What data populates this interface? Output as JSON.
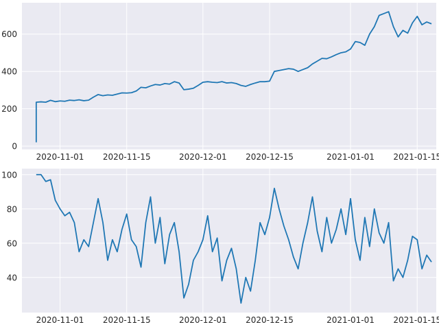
{
  "chart_data": [
    {
      "type": "line",
      "title": "",
      "xlabel": "",
      "ylabel": "",
      "x_tick_labels": [
        "2020-11-01",
        "2020-11-15",
        "2020-12-01",
        "2020-12-15",
        "2021-01-01",
        "2021-01-15"
      ],
      "y_tick_labels": [
        "0",
        "200",
        "400",
        "600"
      ],
      "x_range": [
        "2020-10-24",
        "2021-01-19"
      ],
      "ylim": [
        -18,
        768
      ],
      "grid": true,
      "line_color": "#1f77b4",
      "background_color": "#eaeaf2",
      "series": [
        {
          "points": [
            [
              "2020-10-27",
              20
            ],
            [
              "2020-10-27",
              235
            ],
            [
              "2020-10-28",
              237
            ],
            [
              "2020-10-29",
              235
            ],
            [
              "2020-10-30",
              245
            ],
            [
              "2020-10-31",
              238
            ],
            [
              "2020-11-01",
              242
            ],
            [
              "2020-11-02",
              240
            ],
            [
              "2020-11-03",
              246
            ],
            [
              "2020-11-04",
              244
            ],
            [
              "2020-11-05",
              248
            ],
            [
              "2020-11-06",
              243
            ],
            [
              "2020-11-07",
              246
            ],
            [
              "2020-11-08",
              262
            ],
            [
              "2020-11-09",
              276
            ],
            [
              "2020-11-10",
              270
            ],
            [
              "2020-11-11",
              274
            ],
            [
              "2020-11-12",
              272
            ],
            [
              "2020-11-14",
              285
            ],
            [
              "2020-11-15",
              284
            ],
            [
              "2020-11-16",
              286
            ],
            [
              "2020-11-17",
              295
            ],
            [
              "2020-11-18",
              315
            ],
            [
              "2020-11-19",
              312
            ],
            [
              "2020-11-20",
              322
            ],
            [
              "2020-11-21",
              330
            ],
            [
              "2020-11-22",
              327
            ],
            [
              "2020-11-23",
              335
            ],
            [
              "2020-11-24",
              332
            ],
            [
              "2020-11-25",
              345
            ],
            [
              "2020-11-26",
              338
            ],
            [
              "2020-11-27",
              302
            ],
            [
              "2020-11-28",
              305
            ],
            [
              "2020-11-29",
              310
            ],
            [
              "2020-11-30",
              325
            ],
            [
              "2020-12-01",
              342
            ],
            [
              "2020-12-02",
              345
            ],
            [
              "2020-12-03",
              342
            ],
            [
              "2020-12-04",
              340
            ],
            [
              "2020-12-05",
              345
            ],
            [
              "2020-12-06",
              338
            ],
            [
              "2020-12-07",
              340
            ],
            [
              "2020-12-08",
              335
            ],
            [
              "2020-12-09",
              325
            ],
            [
              "2020-12-10",
              320
            ],
            [
              "2020-12-11",
              330
            ],
            [
              "2020-12-12",
              338
            ],
            [
              "2020-12-13",
              345
            ],
            [
              "2020-12-14",
              345
            ],
            [
              "2020-12-15",
              348
            ],
            [
              "2020-12-16",
              400
            ],
            [
              "2020-12-17",
              405
            ],
            [
              "2020-12-18",
              410
            ],
            [
              "2020-12-19",
              415
            ],
            [
              "2020-12-20",
              412
            ],
            [
              "2020-12-21",
              400
            ],
            [
              "2020-12-22",
              410
            ],
            [
              "2020-12-23",
              420
            ],
            [
              "2020-12-24",
              440
            ],
            [
              "2020-12-25",
              455
            ],
            [
              "2020-12-26",
              470
            ],
            [
              "2020-12-27",
              468
            ],
            [
              "2020-12-28",
              478
            ],
            [
              "2020-12-29",
              490
            ],
            [
              "2020-12-30",
              500
            ],
            [
              "2020-12-31",
              505
            ],
            [
              "2021-01-01",
              520
            ],
            [
              "2021-01-02",
              560
            ],
            [
              "2021-01-03",
              555
            ],
            [
              "2021-01-04",
              540
            ],
            [
              "2021-01-05",
              600
            ],
            [
              "2021-01-06",
              640
            ],
            [
              "2021-01-07",
              700
            ],
            [
              "2021-01-08",
              710
            ],
            [
              "2021-01-09",
              720
            ],
            [
              "2021-01-10",
              640
            ],
            [
              "2021-01-11",
              585
            ],
            [
              "2021-01-12",
              620
            ],
            [
              "2021-01-13",
              605
            ],
            [
              "2021-01-14",
              660
            ],
            [
              "2021-01-15",
              695
            ],
            [
              "2021-01-16",
              650
            ],
            [
              "2021-01-17",
              665
            ],
            [
              "2021-01-18",
              655
            ]
          ]
        }
      ]
    },
    {
      "type": "line",
      "title": "",
      "xlabel": "",
      "ylabel": "",
      "x_tick_labels": [
        "2020-11-01",
        "2020-11-15",
        "2020-12-01",
        "2020-12-15",
        "2021-01-01",
        "2021-01-15"
      ],
      "y_tick_labels": [
        "40",
        "60",
        "80",
        "100"
      ],
      "x_range": [
        "2020-10-24",
        "2021-01-19"
      ],
      "ylim": [
        19.5,
        103.5
      ],
      "grid": true,
      "line_color": "#1f77b4",
      "background_color": "#eaeaf2",
      "series": [
        {
          "points": [
            [
              "2020-10-27",
              100
            ],
            [
              "2020-10-28",
              100
            ],
            [
              "2020-10-29",
              96
            ],
            [
              "2020-10-30",
              97
            ],
            [
              "2020-10-31",
              85
            ],
            [
              "2020-11-01",
              80
            ],
            [
              "2020-11-02",
              76
            ],
            [
              "2020-11-03",
              78
            ],
            [
              "2020-11-04",
              72
            ],
            [
              "2020-11-05",
              55
            ],
            [
              "2020-11-06",
              62
            ],
            [
              "2020-11-07",
              58
            ],
            [
              "2020-11-08",
              72
            ],
            [
              "2020-11-09",
              86
            ],
            [
              "2020-11-10",
              72
            ],
            [
              "2020-11-11",
              50
            ],
            [
              "2020-11-12",
              62
            ],
            [
              "2020-11-13",
              55
            ],
            [
              "2020-11-14",
              68
            ],
            [
              "2020-11-15",
              77
            ],
            [
              "2020-11-16",
              62
            ],
            [
              "2020-11-17",
              58
            ],
            [
              "2020-11-18",
              46
            ],
            [
              "2020-11-19",
              72
            ],
            [
              "2020-11-20",
              87
            ],
            [
              "2020-11-21",
              60
            ],
            [
              "2020-11-22",
              75
            ],
            [
              "2020-11-23",
              48
            ],
            [
              "2020-11-24",
              65
            ],
            [
              "2020-11-25",
              72
            ],
            [
              "2020-11-26",
              55
            ],
            [
              "2020-11-27",
              28
            ],
            [
              "2020-11-28",
              36
            ],
            [
              "2020-11-29",
              50
            ],
            [
              "2020-11-30",
              55
            ],
            [
              "2020-12-01",
              62
            ],
            [
              "2020-12-02",
              76
            ],
            [
              "2020-12-03",
              55
            ],
            [
              "2020-12-04",
              63
            ],
            [
              "2020-12-05",
              38
            ],
            [
              "2020-12-06",
              50
            ],
            [
              "2020-12-07",
              57
            ],
            [
              "2020-12-08",
              45
            ],
            [
              "2020-12-09",
              25
            ],
            [
              "2020-12-10",
              40
            ],
            [
              "2020-12-11",
              32
            ],
            [
              "2020-12-12",
              50
            ],
            [
              "2020-12-13",
              72
            ],
            [
              "2020-12-14",
              65
            ],
            [
              "2020-12-15",
              75
            ],
            [
              "2020-12-16",
              92
            ],
            [
              "2020-12-17",
              80
            ],
            [
              "2020-12-18",
              70
            ],
            [
              "2020-12-19",
              62
            ],
            [
              "2020-12-20",
              52
            ],
            [
              "2020-12-21",
              45
            ],
            [
              "2020-12-22",
              60
            ],
            [
              "2020-12-23",
              72
            ],
            [
              "2020-12-24",
              87
            ],
            [
              "2020-12-25",
              67
            ],
            [
              "2020-12-26",
              55
            ],
            [
              "2020-12-27",
              75
            ],
            [
              "2020-12-28",
              60
            ],
            [
              "2020-12-29",
              68
            ],
            [
              "2020-12-30",
              80
            ],
            [
              "2020-12-31",
              65
            ],
            [
              "2021-01-01",
              86
            ],
            [
              "2021-01-02",
              62
            ],
            [
              "2021-01-03",
              50
            ],
            [
              "2021-01-04",
              75
            ],
            [
              "2021-01-05",
              58
            ],
            [
              "2021-01-06",
              80
            ],
            [
              "2021-01-07",
              66
            ],
            [
              "2021-01-08",
              60
            ],
            [
              "2021-01-09",
              72
            ],
            [
              "2021-01-10",
              38
            ],
            [
              "2021-01-11",
              45
            ],
            [
              "2021-01-12",
              40
            ],
            [
              "2021-01-13",
              50
            ],
            [
              "2021-01-14",
              64
            ],
            [
              "2021-01-15",
              62
            ],
            [
              "2021-01-16",
              45
            ],
            [
              "2021-01-17",
              53
            ],
            [
              "2021-01-18",
              49
            ]
          ]
        }
      ]
    }
  ]
}
